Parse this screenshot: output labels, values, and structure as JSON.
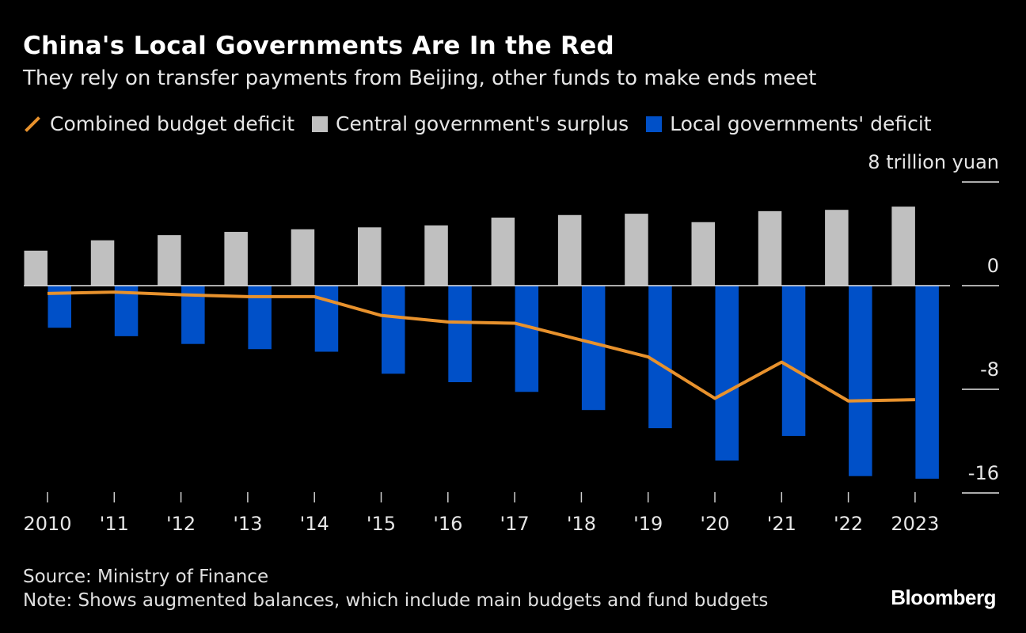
{
  "chart_data": {
    "type": "bar",
    "title": "China's Local Governments Are In the Red",
    "subtitle": "They rely on transfer payments from Beijing, other funds to make ends meet",
    "unit_label": "8 trillion yuan",
    "categories": [
      "2010",
      "'11",
      "'12",
      "'13",
      "'14",
      "'15",
      "'16",
      "'17",
      "'18",
      "'19",
      "'20",
      "'21",
      "'22",
      "2023"
    ],
    "series": [
      {
        "name": "Combined budget deficit",
        "type": "line",
        "color": "#e8922d",
        "values": [
          -0.6,
          -0.5,
          -0.7,
          -0.85,
          -0.85,
          -2.3,
          -2.8,
          -2.9,
          -4.2,
          -5.5,
          -8.7,
          -5.9,
          -8.9,
          -8.8
        ]
      },
      {
        "name": "Central government's surplus",
        "type": "bar",
        "color": "#c0c0c0",
        "values": [
          2.7,
          3.5,
          3.9,
          4.15,
          4.35,
          4.5,
          4.65,
          5.25,
          5.45,
          5.55,
          4.9,
          5.75,
          5.85,
          6.1
        ]
      },
      {
        "name": "Local governments' deficit",
        "type": "bar",
        "color": "#0050c8",
        "values": [
          -3.25,
          -3.9,
          -4.5,
          -4.9,
          -5.1,
          -6.8,
          -7.45,
          -8.2,
          -9.6,
          -11.0,
          -13.5,
          -11.6,
          -14.7,
          -14.9
        ]
      }
    ],
    "yticks": [
      8,
      0,
      -8,
      -16
    ],
    "ytick_labels": [
      "8 trillion yuan",
      "0",
      "-8",
      "-16"
    ],
    "ylim": [
      -16,
      8
    ],
    "grid": false,
    "legend_position": "top-left",
    "y_axis_side": "right"
  },
  "footer": {
    "source": "Source: Ministry of Finance",
    "note": "Note: Shows augmented balances, which include main budgets and fund budgets",
    "logo": "Bloomberg"
  }
}
